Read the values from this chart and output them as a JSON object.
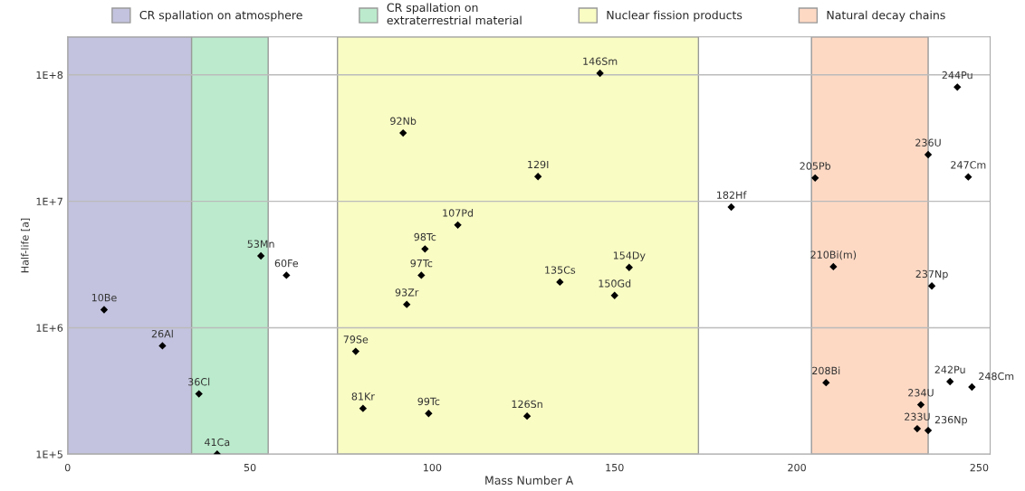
{
  "chart_data": {
    "type": "scatter",
    "xlabel": "Mass Number A",
    "ylabel": "Half-life [a]",
    "xlim": [
      0,
      253
    ],
    "xticks": [
      0,
      50,
      100,
      150,
      200,
      250
    ],
    "ylim": [
      100000,
      200000000
    ],
    "log": "y",
    "yticks": [
      {
        "value": 100000,
        "label": "1E+5"
      },
      {
        "value": 1000000,
        "label": "1E+6"
      },
      {
        "value": 10000000,
        "label": "1E+7"
      },
      {
        "value": 100000000,
        "label": "1E+8"
      }
    ],
    "grid": "y",
    "legend": "top",
    "marker": "diamond",
    "series": [
      {
        "color": "#000000",
        "x": [
          10,
          26,
          36,
          41,
          53,
          60,
          79,
          81,
          92,
          93,
          97,
          98,
          99,
          107,
          126,
          129,
          135,
          146,
          150,
          154,
          182,
          205,
          208,
          210,
          233,
          234,
          236,
          236,
          237,
          242,
          244,
          247,
          248
        ],
        "values": [
          1390000,
          720000,
          300000,
          100000,
          3700000,
          2600000,
          650000,
          230000,
          34700000,
          1530000,
          2600000,
          4200000,
          210000,
          6500000,
          200000,
          15700000,
          2300000,
          103000000,
          1800000,
          3000000,
          9000000,
          15300000,
          368000,
          3040000,
          159000,
          246000,
          154000,
          23400000,
          2140000,
          375000,
          80000000,
          15600000,
          340000
        ]
      }
    ],
    "annotations": [
      {
        "text": "10Be",
        "x": 10,
        "y": 1390000
      },
      {
        "text": "26Al",
        "x": 26,
        "y": 720000
      },
      {
        "text": "36Cl",
        "x": 36,
        "y": 300000
      },
      {
        "text": "41Ca",
        "x": 41,
        "y": 100000
      },
      {
        "text": "53Mn",
        "x": 53,
        "y": 3700000
      },
      {
        "text": "60Fe",
        "x": 60,
        "y": 2600000
      },
      {
        "text": "79Se",
        "x": 79,
        "y": 650000
      },
      {
        "text": "81Kr",
        "x": 81,
        "y": 230000
      },
      {
        "text": "92Nb",
        "x": 92,
        "y": 34700000
      },
      {
        "text": "93Zr",
        "x": 93,
        "y": 1530000
      },
      {
        "text": "97Tc",
        "x": 97,
        "y": 2600000
      },
      {
        "text": "98Tc",
        "x": 98,
        "y": 4200000
      },
      {
        "text": "99Tc",
        "x": 99,
        "y": 210000
      },
      {
        "text": "107Pd",
        "x": 107,
        "y": 6500000
      },
      {
        "text": "126Sn",
        "x": 126,
        "y": 200000
      },
      {
        "text": "129I",
        "x": 129,
        "y": 15700000
      },
      {
        "text": "135Cs",
        "x": 135,
        "y": 2300000
      },
      {
        "text": "146Sm",
        "x": 146,
        "y": 103000000
      },
      {
        "text": "150Gd",
        "x": 150,
        "y": 1800000
      },
      {
        "text": "154Dy",
        "x": 154,
        "y": 3000000
      },
      {
        "text": "182Hf",
        "x": 182,
        "y": 9000000
      },
      {
        "text": "205Pb",
        "x": 205,
        "y": 15300000
      },
      {
        "text": "208Bi",
        "x": 208,
        "y": 368000
      },
      {
        "text": "210Bi(m)",
        "x": 210,
        "y": 3040000
      },
      {
        "text": "233U",
        "x": 233,
        "y": 159000
      },
      {
        "text": "234U",
        "x": 234,
        "y": 246000
      },
      {
        "text": "236Np",
        "x": 236,
        "y": 154000
      },
      {
        "text": "236U",
        "x": 236,
        "y": 23400000
      },
      {
        "text": "237Np",
        "x": 237,
        "y": 2140000
      },
      {
        "text": "242Pu",
        "x": 242,
        "y": 375000
      },
      {
        "text": "244Pu",
        "x": 244,
        "y": 80000000
      },
      {
        "text": "247Cm",
        "x": 247,
        "y": 15600000
      },
      {
        "text": "248Cm",
        "x": 248,
        "y": 340000
      }
    ],
    "bands": [
      {
        "axis": "x",
        "from": 0,
        "to": 34,
        "label": "CR spallation on atmosphere",
        "color": "#c3c3df"
      },
      {
        "axis": "x",
        "from": 34,
        "to": 55,
        "label": "CR spallation on\nextraterrestrial material",
        "color": "#bbebcc"
      },
      {
        "axis": "x",
        "from": 74,
        "to": 173,
        "label": "Nuclear fission products",
        "color": "#f9fcc3"
      },
      {
        "axis": "x",
        "from": 204,
        "to": 236,
        "label": "Natural decay chains",
        "color": "#fdd9c4"
      }
    ]
  }
}
